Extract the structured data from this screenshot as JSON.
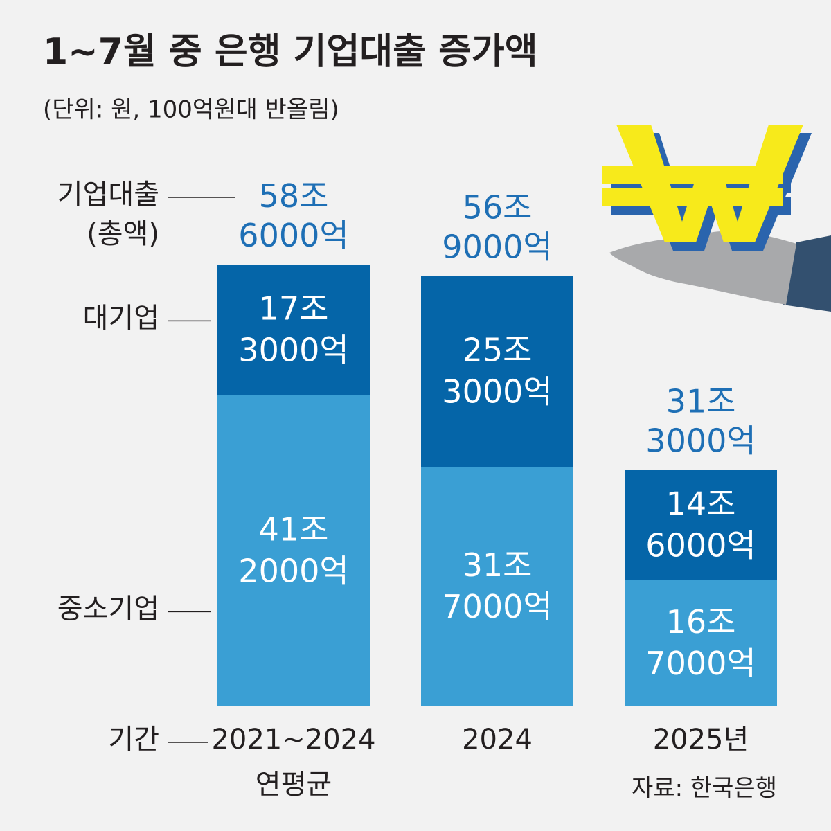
{
  "chart_data": {
    "type": "stacked_bar",
    "title": "1~7월 중 은행 기업대출 증가액",
    "subtitle": "(단위: 원, 100억원대 반올림)",
    "x_label": "기간",
    "total_label": "기업대출 (총액)",
    "categories": [
      "2021~2024 연평균",
      "2024",
      "2025년"
    ],
    "series": [
      {
        "name": "중소기업",
        "color": "#3a9fd4",
        "values": [
          41.2,
          31.7,
          16.7
        ],
        "value_labels": [
          "41조 2000억",
          "31조 7000억",
          "16조 7000억"
        ]
      },
      {
        "name": "대기업",
        "color": "#0565a8",
        "values": [
          17.3,
          25.3,
          14.6
        ],
        "value_labels": [
          "17조 3000억",
          "25조 3000억",
          "14조 6000억"
        ]
      }
    ],
    "totals": [
      58.6,
      56.9,
      31.3
    ],
    "total_value_labels": [
      "58조 6000억",
      "56조 9000억",
      "31조 3000억"
    ],
    "total_color": "#1e6fb5",
    "source": "자료: 한국은행"
  }
}
